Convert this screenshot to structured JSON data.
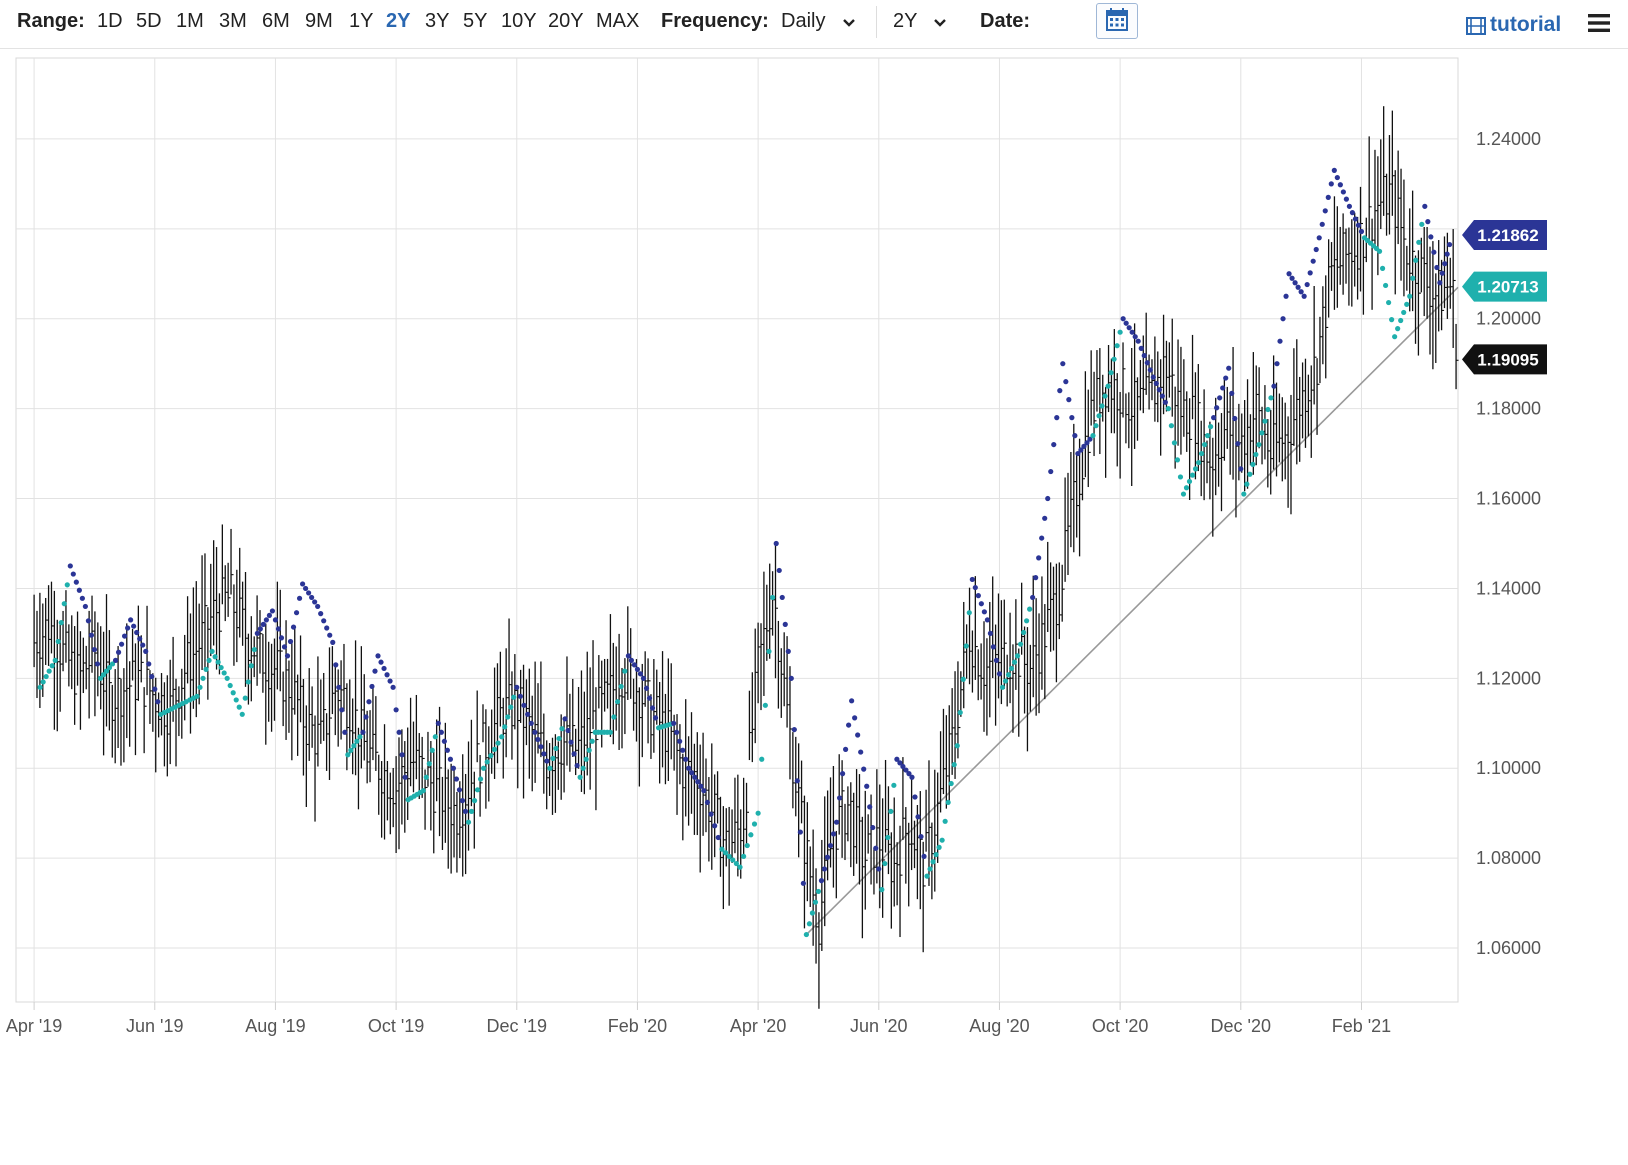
{
  "toolbar": {
    "range_label": "Range:",
    "ranges": [
      "1D",
      "5D",
      "1M",
      "3M",
      "6M",
      "9M",
      "1Y",
      "2Y",
      "3Y",
      "5Y",
      "10Y",
      "20Y",
      "MAX"
    ],
    "active_range": "2Y",
    "frequency_label": "Frequency:",
    "frequency_value": "Daily",
    "period_value": "2Y",
    "date_label": "Date:",
    "tutorial_label": "tutorial",
    "accent_color": "#2a67b1"
  },
  "chart_data": {
    "type": "line",
    "title": "",
    "xlabel": "",
    "ylabel": "",
    "x_ticks": [
      "Apr '19",
      "Jun '19",
      "Aug '19",
      "Oct '19",
      "Dec '19",
      "Feb '20",
      "Apr '20",
      "Jun '20",
      "Aug '20",
      "Oct '20",
      "Dec '20",
      "Feb '21"
    ],
    "y_ticks": [
      "1.06000",
      "1.08000",
      "1.10000",
      "1.12000",
      "1.14000",
      "1.16000",
      "1.18000",
      "1.20000",
      "1.24000"
    ],
    "ylim": [
      1.048,
      1.258
    ],
    "xlim_month_index": [
      -0.3,
      23.6
    ],
    "grid": true,
    "series": [
      {
        "kind": "ohlc-bars",
        "color": "#111111",
        "points_month_index_close": [
          [
            0.0,
            1.128
          ],
          [
            0.25,
            1.132
          ],
          [
            0.5,
            1.125
          ],
          [
            0.75,
            1.12
          ],
          [
            1.0,
            1.126
          ],
          [
            1.25,
            1.116
          ],
          [
            1.5,
            1.118
          ],
          [
            1.75,
            1.12
          ],
          [
            2.0,
            1.116
          ],
          [
            2.25,
            1.113
          ],
          [
            2.5,
            1.122
          ],
          [
            2.75,
            1.128
          ],
          [
            3.0,
            1.135
          ],
          [
            3.25,
            1.138
          ],
          [
            3.5,
            1.13
          ],
          [
            3.75,
            1.125
          ],
          [
            4.0,
            1.122
          ],
          [
            4.25,
            1.118
          ],
          [
            4.5,
            1.11
          ],
          [
            4.75,
            1.106
          ],
          [
            5.0,
            1.118
          ],
          [
            5.25,
            1.114
          ],
          [
            5.5,
            1.104
          ],
          [
            5.75,
            1.1
          ],
          [
            6.0,
            1.096
          ],
          [
            6.25,
            1.102
          ],
          [
            6.5,
            1.098
          ],
          [
            6.75,
            1.094
          ],
          [
            7.0,
            1.09
          ],
          [
            7.25,
            1.098
          ],
          [
            7.5,
            1.106
          ],
          [
            7.75,
            1.112
          ],
          [
            8.0,
            1.114
          ],
          [
            8.25,
            1.108
          ],
          [
            8.5,
            1.102
          ],
          [
            8.75,
            1.106
          ],
          [
            9.0,
            1.104
          ],
          [
            9.25,
            1.11
          ],
          [
            9.5,
            1.115
          ],
          [
            9.75,
            1.122
          ],
          [
            10.0,
            1.118
          ],
          [
            10.25,
            1.112
          ],
          [
            10.5,
            1.108
          ],
          [
            10.75,
            1.1
          ],
          [
            11.0,
            1.098
          ],
          [
            11.25,
            1.09
          ],
          [
            11.5,
            1.082
          ],
          [
            11.75,
            1.088
          ],
          [
            12.0,
            1.122
          ],
          [
            12.25,
            1.14
          ],
          [
            12.5,
            1.11
          ],
          [
            12.75,
            1.085
          ],
          [
            13.0,
            1.066
          ],
          [
            13.25,
            1.086
          ],
          [
            13.5,
            1.092
          ],
          [
            13.75,
            1.08
          ],
          [
            14.0,
            1.084
          ],
          [
            14.25,
            1.078
          ],
          [
            14.5,
            1.088
          ],
          [
            14.75,
            1.078
          ],
          [
            15.0,
            1.092
          ],
          [
            15.25,
            1.108
          ],
          [
            15.5,
            1.13
          ],
          [
            15.75,
            1.122
          ],
          [
            16.0,
            1.124
          ],
          [
            16.25,
            1.126
          ],
          [
            16.5,
            1.122
          ],
          [
            16.75,
            1.13
          ],
          [
            17.0,
            1.14
          ],
          [
            17.25,
            1.16
          ],
          [
            17.5,
            1.178
          ],
          [
            17.75,
            1.186
          ],
          [
            18.0,
            1.184
          ],
          [
            18.25,
            1.18
          ],
          [
            18.5,
            1.182
          ],
          [
            18.75,
            1.19
          ],
          [
            19.0,
            1.18
          ],
          [
            19.25,
            1.178
          ],
          [
            19.5,
            1.168
          ],
          [
            19.75,
            1.176
          ],
          [
            20.0,
            1.172
          ],
          [
            20.25,
            1.18
          ],
          [
            20.5,
            1.17
          ],
          [
            20.75,
            1.174
          ],
          [
            21.0,
            1.182
          ],
          [
            21.25,
            1.19
          ],
          [
            21.5,
            1.21
          ],
          [
            21.75,
            1.214
          ],
          [
            22.0,
            1.218
          ],
          [
            22.25,
            1.225
          ],
          [
            22.5,
            1.228
          ],
          [
            22.75,
            1.215
          ],
          [
            23.0,
            1.21
          ],
          [
            23.25,
            1.205
          ],
          [
            23.5,
            1.208
          ],
          [
            23.6,
            1.19095
          ]
        ]
      },
      {
        "kind": "parabolic-sar-dots",
        "color_above": "#2b3596",
        "color_below": "#1fb0ad",
        "points_month_index_value": [
          [
            0.1,
            1.118
          ],
          [
            0.35,
            1.124
          ],
          [
            0.6,
            1.145
          ],
          [
            0.85,
            1.136
          ],
          [
            1.1,
            1.12
          ],
          [
            1.35,
            1.124
          ],
          [
            1.6,
            1.133
          ],
          [
            1.85,
            1.126
          ],
          [
            2.1,
            1.112
          ],
          [
            2.4,
            1.114
          ],
          [
            2.7,
            1.116
          ],
          [
            2.95,
            1.126
          ],
          [
            3.2,
            1.12
          ],
          [
            3.45,
            1.112
          ],
          [
            3.7,
            1.13
          ],
          [
            3.95,
            1.135
          ],
          [
            4.2,
            1.125
          ],
          [
            4.45,
            1.141
          ],
          [
            4.7,
            1.136
          ],
          [
            4.95,
            1.128
          ],
          [
            5.2,
            1.103
          ],
          [
            5.45,
            1.108
          ],
          [
            5.7,
            1.125
          ],
          [
            5.95,
            1.118
          ],
          [
            6.2,
            1.093
          ],
          [
            6.45,
            1.095
          ],
          [
            6.7,
            1.11
          ],
          [
            6.95,
            1.1
          ],
          [
            7.2,
            1.088
          ],
          [
            7.45,
            1.1
          ],
          [
            7.75,
            1.107
          ],
          [
            8.0,
            1.118
          ],
          [
            8.3,
            1.108
          ],
          [
            8.55,
            1.1
          ],
          [
            8.8,
            1.111
          ],
          [
            9.05,
            1.098
          ],
          [
            9.3,
            1.108
          ],
          [
            9.55,
            1.108
          ],
          [
            9.85,
            1.125
          ],
          [
            10.1,
            1.12
          ],
          [
            10.35,
            1.109
          ],
          [
            10.6,
            1.11
          ],
          [
            10.85,
            1.1
          ],
          [
            11.1,
            1.095
          ],
          [
            11.4,
            1.082
          ],
          [
            11.7,
            1.078
          ],
          [
            12.0,
            1.09
          ],
          [
            12.3,
            1.15
          ],
          [
            12.55,
            1.12
          ],
          [
            12.8,
            1.063
          ],
          [
            13.05,
            1.075
          ],
          [
            13.3,
            1.088
          ],
          [
            13.55,
            1.115
          ],
          [
            13.8,
            1.096
          ],
          [
            14.05,
            1.073
          ],
          [
            14.3,
            1.102
          ],
          [
            14.55,
            1.098
          ],
          [
            14.8,
            1.076
          ],
          [
            15.05,
            1.084
          ],
          [
            15.3,
            1.105
          ],
          [
            15.55,
            1.142
          ],
          [
            15.8,
            1.133
          ],
          [
            16.05,
            1.118
          ],
          [
            16.3,
            1.125
          ],
          [
            16.55,
            1.138
          ],
          [
            16.8,
            1.16
          ],
          [
            17.05,
            1.19
          ],
          [
            17.3,
            1.17
          ],
          [
            17.55,
            1.174
          ],
          [
            17.8,
            1.185
          ],
          [
            18.05,
            1.2
          ],
          [
            18.3,
            1.195
          ],
          [
            18.55,
            1.187
          ],
          [
            18.8,
            1.18
          ],
          [
            19.05,
            1.161
          ],
          [
            19.3,
            1.168
          ],
          [
            19.55,
            1.178
          ],
          [
            19.8,
            1.189
          ],
          [
            20.05,
            1.161
          ],
          [
            20.3,
            1.172
          ],
          [
            20.55,
            1.185
          ],
          [
            20.8,
            1.21
          ],
          [
            21.05,
            1.205
          ],
          [
            21.3,
            1.218
          ],
          [
            21.55,
            1.233
          ],
          [
            21.8,
            1.225
          ],
          [
            22.05,
            1.218
          ],
          [
            22.3,
            1.215
          ],
          [
            22.55,
            1.196
          ],
          [
            22.8,
            1.205
          ],
          [
            23.05,
            1.225
          ],
          [
            23.3,
            1.208
          ],
          [
            23.5,
            1.21862
          ]
        ]
      },
      {
        "kind": "trendline",
        "color": "#999999",
        "points_month_index_value": [
          [
            12.8,
            1.063
          ],
          [
            23.6,
            1.207
          ]
        ]
      }
    ],
    "price_badges": [
      {
        "label": "1.21862",
        "value": 1.21862,
        "color": "#2b3596"
      },
      {
        "label": "1.20713",
        "value": 1.20713,
        "color": "#1fb0ad"
      },
      {
        "label": "1.19095",
        "value": 1.19095,
        "color": "#111111"
      }
    ]
  }
}
